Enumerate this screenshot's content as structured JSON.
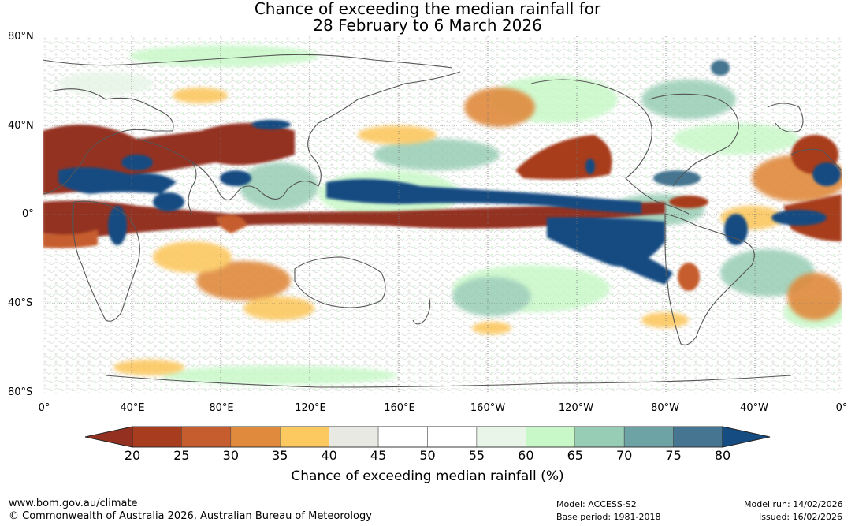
{
  "title": {
    "line1": "Chance of exceeding the median rainfall for",
    "line2": "28 February to 6 March 2026"
  },
  "lat_labels": [
    "80°N",
    "40°N",
    "0°",
    "40°S",
    "80°S"
  ],
  "lon_labels": [
    "0°",
    "40°E",
    "80°E",
    "120°E",
    "160°E",
    "160°W",
    "120°W",
    "80°W",
    "40°W",
    "0°"
  ],
  "colorbar": {
    "ticks": [
      "20",
      "25",
      "30",
      "35",
      "40",
      "45",
      "50",
      "55",
      "60",
      "65",
      "70",
      "75",
      "80"
    ],
    "colors": [
      "#a83c1e",
      "#c65d2e",
      "#e08a3e",
      "#fcc860",
      "#e9e9e4",
      "#ffffff",
      "#ffffff",
      "#e8f5e8",
      "#c8f8c8",
      "#98cdb5",
      "#6ea3a6",
      "#457590"
    ],
    "low_color": "#943020",
    "high_color": "#154c82",
    "label": "Chance of exceeding median rainfall (%)"
  },
  "footer": {
    "website": "www.bom.gov.au/climate",
    "copyright": "© Commonwealth of Australia 2026, Australian Bureau of Meteorology",
    "model": "Model: ACCESS-S2",
    "base_period": "Base period: 1981-2018",
    "model_run": "Model run: 14/02/2026",
    "issued": "Issued: 16/02/2026"
  }
}
